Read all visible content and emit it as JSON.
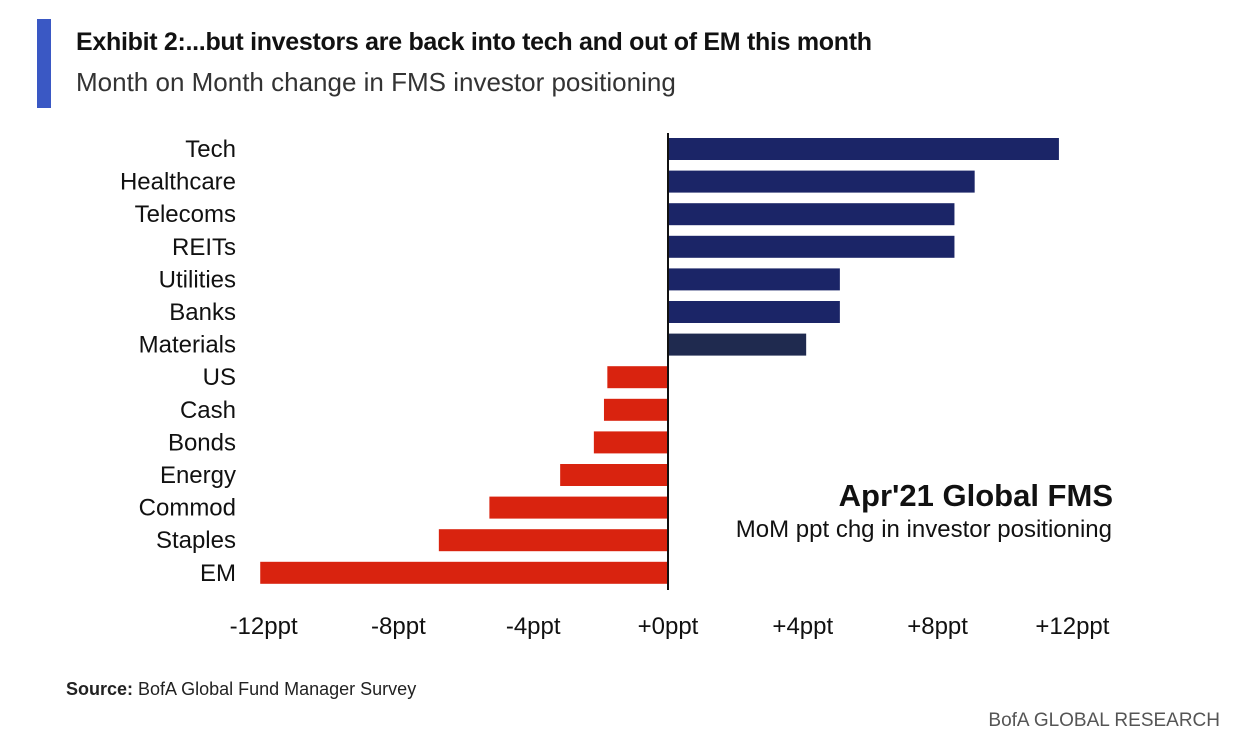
{
  "header": {
    "title": "Exhibit 2:...but investors are back into tech and out of EM this month",
    "subtitle": "Month on Month change in FMS investor positioning"
  },
  "annotation": {
    "title": "Apr'21 Global FMS",
    "subtitle": "MoM ppt chg in investor positioning"
  },
  "footer": {
    "source_label": "Source:",
    "source_text": " BofA Global Fund Manager Survey",
    "brand": "BofA GLOBAL RESEARCH"
  },
  "colors": {
    "accent": "#3a58c4",
    "positive": "#1b2567",
    "materials": "#1f2a4f",
    "negative": "#d9230f",
    "axis": "#111111"
  },
  "chart_data": {
    "type": "bar",
    "orientation": "horizontal",
    "categories": [
      "Tech",
      "Healthcare",
      "Telecoms",
      "REITs",
      "Utilities",
      "Banks",
      "Materials",
      "US",
      "Cash",
      "Bonds",
      "Energy",
      "Commod",
      "Staples",
      "EM"
    ],
    "values": [
      11.6,
      9.1,
      8.5,
      8.5,
      5.1,
      5.1,
      4.1,
      -1.8,
      -1.9,
      -2.2,
      -3.2,
      -5.3,
      -6.8,
      -12.1
    ],
    "xlim": [
      -12,
      12
    ],
    "xticks": [
      -12,
      -8,
      -4,
      0,
      4,
      8,
      12
    ],
    "xtick_labels": [
      "-12ppt",
      "-8ppt",
      "-4ppt",
      "+0ppt",
      "+4ppt",
      "+8ppt",
      "+12ppt"
    ],
    "grid": false,
    "legend": "none"
  }
}
